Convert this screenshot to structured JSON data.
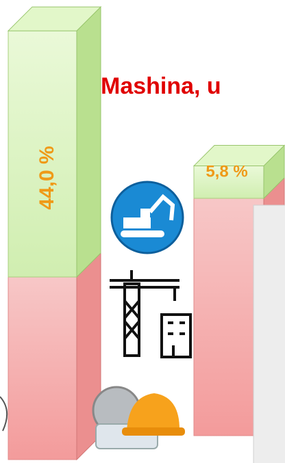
{
  "chart_data": {
    "type": "bar",
    "title": "Mashina, u",
    "series": [
      {
        "color": "#d4f0b4",
        "values": [
          44.0,
          5.8
        ],
        "value_labels": [
          "44,0 %",
          "5,8 %"
        ]
      }
    ]
  }
}
